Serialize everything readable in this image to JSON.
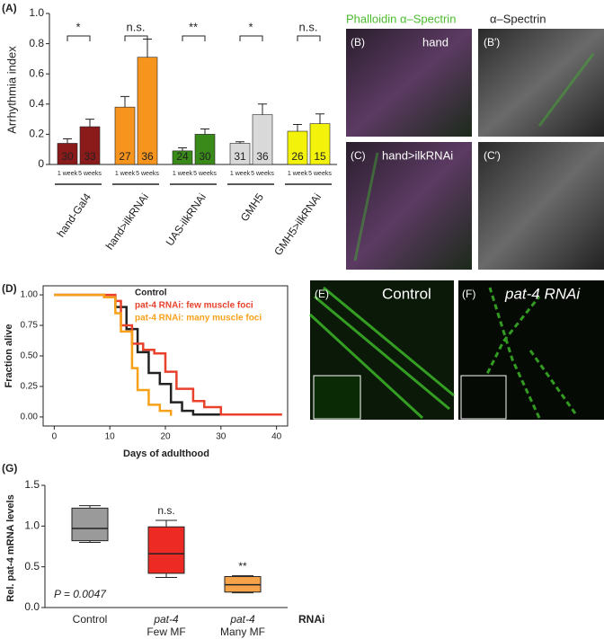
{
  "chart_data": [
    {
      "type": "bar",
      "panel": "(A)",
      "y_label": "Arrhythmia index",
      "categories": [
        "hand-Gal4",
        "hand>ilkRNAi",
        "UAS-ilkRNAi",
        "GMH5",
        "GMH5>ilkRNAi"
      ],
      "colors": [
        "#8b1a1a",
        "#f7941d",
        "#3a8a1a",
        "#d9d9d9",
        "#f2f20a"
      ],
      "series": [
        {
          "name": "1 week",
          "values": [
            0.14,
            0.38,
            0.09,
            0.14,
            0.22
          ],
          "errors": [
            0.03,
            0.07,
            0.02,
            0.01,
            0.045
          ],
          "n": [
            30,
            27,
            24,
            31,
            26
          ]
        },
        {
          "name": "5 weeks",
          "values": [
            0.25,
            0.71,
            0.2,
            0.33,
            0.27
          ],
          "errors": [
            0.05,
            0.12,
            0.035,
            0.07,
            0.065
          ],
          "n": [
            33,
            36,
            30,
            36,
            15
          ]
        }
      ],
      "significance": [
        "*",
        "n.s.",
        "**",
        "*",
        "n.s."
      ],
      "ylim": [
        0,
        1
      ],
      "yticks": [
        0,
        0.2,
        0.4,
        0.6,
        0.8,
        {
          "value": 1,
          "label": "1.0"
        }
      ]
    },
    {
      "type": "step",
      "panel": "(D)",
      "x_label": "Days of adulthood",
      "y_label": "Fraction alive",
      "series": [
        {
          "name": "Control",
          "color": "#222222",
          "x": [
            0,
            9,
            11,
            13,
            15,
            17,
            19,
            21,
            23,
            25,
            30
          ],
          "values": [
            1,
            0.98,
            0.9,
            0.72,
            0.53,
            0.36,
            0.27,
            0.12,
            0.05,
            0.02,
            0.02
          ]
        },
        {
          "name": "pat-4 RNAi: few muscle foci",
          "color": "#e8412c",
          "x": [
            0,
            11,
            12,
            14,
            16,
            18,
            20,
            22,
            25,
            27,
            30,
            41
          ],
          "values": [
            1,
            0.95,
            0.75,
            0.6,
            0.55,
            0.52,
            0.37,
            0.23,
            0.13,
            0.08,
            0.02,
            0.02
          ]
        },
        {
          "name": "pat-4 RNAi: many muscle foci",
          "color": "#f7a11a",
          "x": [
            0,
            9,
            11,
            12,
            14,
            15,
            17,
            19,
            21
          ],
          "values": [
            1,
            0.98,
            0.85,
            0.7,
            0.4,
            0.22,
            0.1,
            0.05,
            0.01
          ]
        }
      ],
      "xlim": [
        -2,
        42
      ],
      "xticks": [
        0,
        10,
        20,
        30,
        40
      ],
      "ylim": [
        -0.03,
        1.03
      ],
      "yticks": [
        {
          "value": 0,
          "label": "0.00"
        },
        {
          "value": 0.25,
          "label": "0.25"
        },
        {
          "value": 0.5,
          "label": "0.50"
        },
        {
          "value": 0.75,
          "label": "0.75"
        },
        {
          "value": 1,
          "label": "1.00"
        }
      ]
    },
    {
      "type": "box",
      "panel": "(G)",
      "y_label": "Rel. pat-4 mRNA levels",
      "x_suffix": "RNAi",
      "categories": [
        [
          "Control"
        ],
        [
          "pat-4",
          "Few MF"
        ],
        [
          "pat-4",
          "Many MF"
        ]
      ],
      "colors": [
        "#9a9a9a",
        "#ee2a24",
        "#f7a34a"
      ],
      "min": [
        0.8,
        0.37,
        0.18
      ],
      "q1": [
        0.82,
        0.42,
        0.19
      ],
      "median": [
        0.97,
        0.66,
        0.28
      ],
      "q3": [
        1.22,
        0.99,
        0.38
      ],
      "max": [
        1.25,
        1.07,
        0.39
      ],
      "significance": [
        null,
        "n.s.",
        "**"
      ],
      "p_value": "P = 0.0047",
      "ylim": [
        0,
        1.5
      ],
      "yticks": [
        {
          "value": 0,
          "label": "0.0"
        },
        0.5,
        {
          "value": 1,
          "label": "1.0"
        },
        1.5
      ]
    }
  ],
  "images": {
    "headers": [
      "Phalloidin α–Spectrin",
      "α–Spectrin"
    ],
    "panels": [
      {
        "label": "(B)",
        "caption": "hand"
      },
      {
        "label": "(B′)",
        "caption": null
      },
      {
        "label": "(C)",
        "caption": "hand>ilkRNAi"
      },
      {
        "label": "(C′)",
        "caption": null
      },
      {
        "label": "(E)",
        "caption": "Control"
      },
      {
        "label": "(F)",
        "caption": "pat-4 RNAi"
      }
    ]
  }
}
